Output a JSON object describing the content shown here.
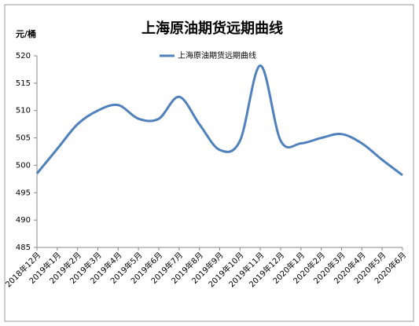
{
  "chart_data": {
    "type": "line",
    "title": "上海原油期货远期曲线",
    "y_label": "元/桶",
    "categories": [
      "2018年12月",
      "2019年1月",
      "2019年2月",
      "2019年3月",
      "2019年4月",
      "2019年5月",
      "2019年6月",
      "2019年7月",
      "2019年8月",
      "2019年9月",
      "2019年10月",
      "2019年11月",
      "2019年12月",
      "2020年1月",
      "2020年2月",
      "2020年3月",
      "2020年4月",
      "2020年5月",
      "2020年6月"
    ],
    "series": [
      {
        "name": "上海原油期货远期曲线",
        "color": "#4f81bd",
        "values": [
          498.5,
          503,
          507.5,
          510,
          511,
          508.5,
          508.5,
          512.5,
          507.5,
          502.8,
          504.5,
          518.2,
          504.5,
          504,
          505,
          505.7,
          504,
          501,
          498.2
        ]
      }
    ],
    "ylim": [
      485,
      520
    ],
    "yticks": [
      485,
      490,
      495,
      500,
      505,
      510,
      515,
      520
    ],
    "grid": false,
    "legend": "top"
  }
}
